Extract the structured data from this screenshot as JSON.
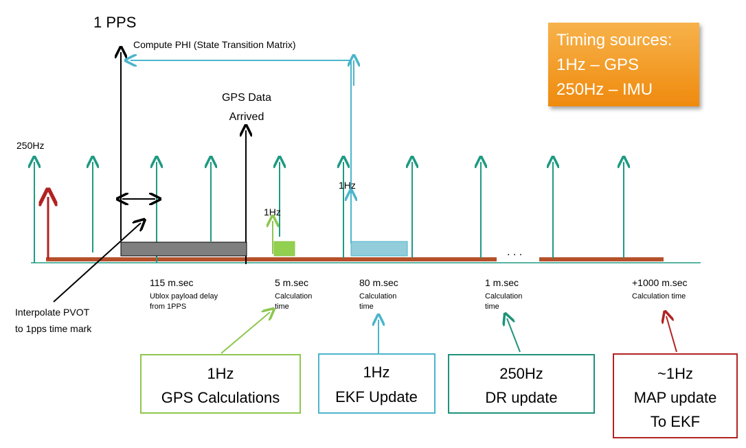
{
  "title": "1 PPS",
  "compute_phi": "Compute PHI (State Transition Matrix)",
  "gps_data_arrived": [
    "GPS Data",
    "Arrived"
  ],
  "label_250hz": "250Hz",
  "label_1hz_green": "1Hz",
  "label_1hz_blue": "1Hz",
  "ellipsis": ". . .",
  "interpolate": [
    "Interpolate PVOT",
    "to 1pps time mark"
  ],
  "timing_sources": {
    "lines": [
      "Timing sources:",
      "1Hz – GPS",
      "250Hz – IMU"
    ],
    "fill": "#f29a1f"
  },
  "timings": [
    {
      "value": "115 m.sec",
      "sub": [
        "Ublox payload delay",
        "from 1PPS"
      ]
    },
    {
      "value": "5 m.sec",
      "sub": [
        "Calculation",
        "time"
      ]
    },
    {
      "value": "80 m.sec",
      "sub": [
        "Calculation",
        "time"
      ]
    },
    {
      "value": "1 m.sec",
      "sub": [
        "Calculation",
        "time"
      ]
    },
    {
      "value": "+1000 m.sec",
      "sub": [
        "Calculation time"
      ]
    }
  ],
  "boxes": [
    {
      "lines": [
        "1Hz",
        "GPS Calculations"
      ],
      "color": "#8dc64f"
    },
    {
      "lines": [
        "1Hz",
        "EKF Update"
      ],
      "color": "#4bb4cc"
    },
    {
      "lines": [
        "250Hz",
        "DR update"
      ],
      "color": "#1e9279"
    },
    {
      "lines": [
        "~1Hz",
        "MAP update",
        "To EKF"
      ],
      "color": "#b22222"
    }
  ],
  "colors": {
    "imu_tick": "#1e9a82",
    "timeline": "#b5502a",
    "baseline": "#1e9a82",
    "gps_bar": "#7f7f7f",
    "gps_calc": "#92d050",
    "ekf_bar": "#92cddc",
    "ekf_arrow": "#4bb4cc",
    "map_arrow": "#b22222"
  }
}
